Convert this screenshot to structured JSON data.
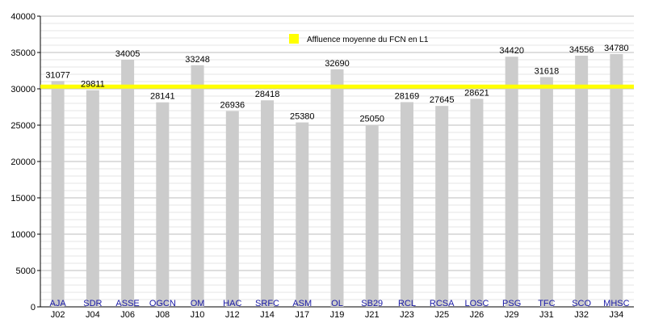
{
  "chart_data": {
    "type": "bar",
    "categories": [
      "J02",
      "J04",
      "J06",
      "J08",
      "J10",
      "J12",
      "J14",
      "J17",
      "J19",
      "J21",
      "J23",
      "J25",
      "J26",
      "J29",
      "J31",
      "J32",
      "J34"
    ],
    "teams": [
      "AJA",
      "SDR",
      "ASSE",
      "OGCN",
      "OM",
      "HAC",
      "SRFC",
      "ASM",
      "OL",
      "SB29",
      "RCL",
      "RCSA",
      "LOSC",
      "PSG",
      "TFC",
      "SCO",
      "MHSC"
    ],
    "values": [
      31077,
      29811,
      34005,
      28141,
      33248,
      26936,
      28418,
      25380,
      32690,
      25050,
      28169,
      27645,
      28621,
      34420,
      31618,
      34556,
      34780
    ],
    "value_labels": [
      "31077",
      "29811",
      "34005",
      "28141",
      "33248",
      "26936",
      "28418",
      "25380",
      "32690",
      "25050",
      "28169",
      "27645",
      "28621",
      "34420",
      "31618",
      "34556",
      "34780"
    ],
    "ylim": [
      0,
      40000
    ],
    "yticks": [
      "0",
      "5000",
      "10000",
      "15000",
      "20000",
      "25000",
      "30000",
      "35000",
      "40000"
    ],
    "reference_line": {
      "name": "Affluence moyenne du FCN en L1",
      "value": 30300,
      "color": "#ffff00"
    },
    "bar_color": "#cccccc",
    "team_label_color": "#1a1aa6",
    "grid": true,
    "legend_position": "top-center"
  }
}
